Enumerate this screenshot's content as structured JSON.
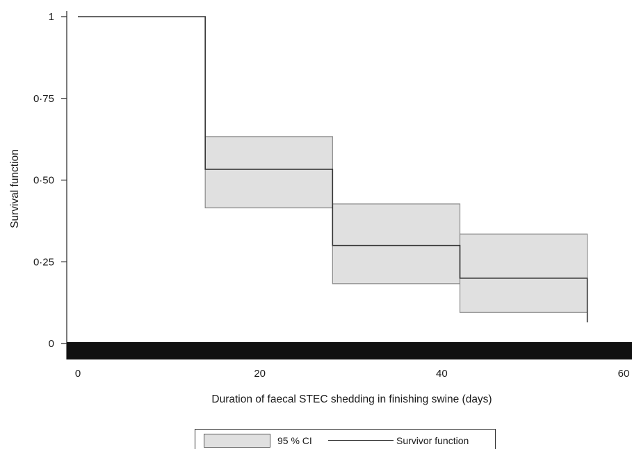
{
  "chart_data": {
    "type": "line",
    "subtype": "step",
    "xlabel": "Duration of faecal STEC shedding in finishing swine (days)",
    "ylabel": "Survival function",
    "xlim": [
      0,
      60
    ],
    "ylim": [
      0,
      1
    ],
    "x_ticks": [
      0,
      20,
      40,
      60
    ],
    "x_tick_labels": [
      "0",
      "20",
      "40",
      "60"
    ],
    "y_ticks": [
      0,
      0.25,
      0.5,
      0.75,
      1
    ],
    "y_tick_labels": [
      "0",
      "0·25",
      "0·50",
      "0·75",
      "1"
    ],
    "grid": false,
    "legend_position": "bottom",
    "series": [
      {
        "name": "Survivor function",
        "steps": [
          {
            "x0": 0,
            "x1": 14,
            "y": 1.0
          },
          {
            "x0": 14,
            "x1": 28,
            "y": 0.533
          },
          {
            "x0": 28,
            "x1": 42,
            "y": 0.3
          },
          {
            "x0": 42,
            "x1": 56,
            "y": 0.2
          }
        ],
        "end": {
          "x": 56,
          "y": 0.065
        }
      },
      {
        "name": "95 % CI",
        "bands": [
          {
            "x0": 14,
            "x1": 28,
            "lower": 0.415,
            "upper": 0.633
          },
          {
            "x0": 28,
            "x1": 42,
            "lower": 0.183,
            "upper": 0.427
          },
          {
            "x0": 42,
            "x1": 56,
            "lower": 0.095,
            "upper": 0.335
          }
        ]
      }
    ],
    "colors": {
      "ci_fill": "#e0e0e0",
      "ci_stroke": "#8a8a8a",
      "survivor_line": "#333333",
      "axis_bar": "#111111"
    }
  },
  "legend": {
    "ci_label": "95 % CI",
    "survivor_label": "Survivor function"
  }
}
